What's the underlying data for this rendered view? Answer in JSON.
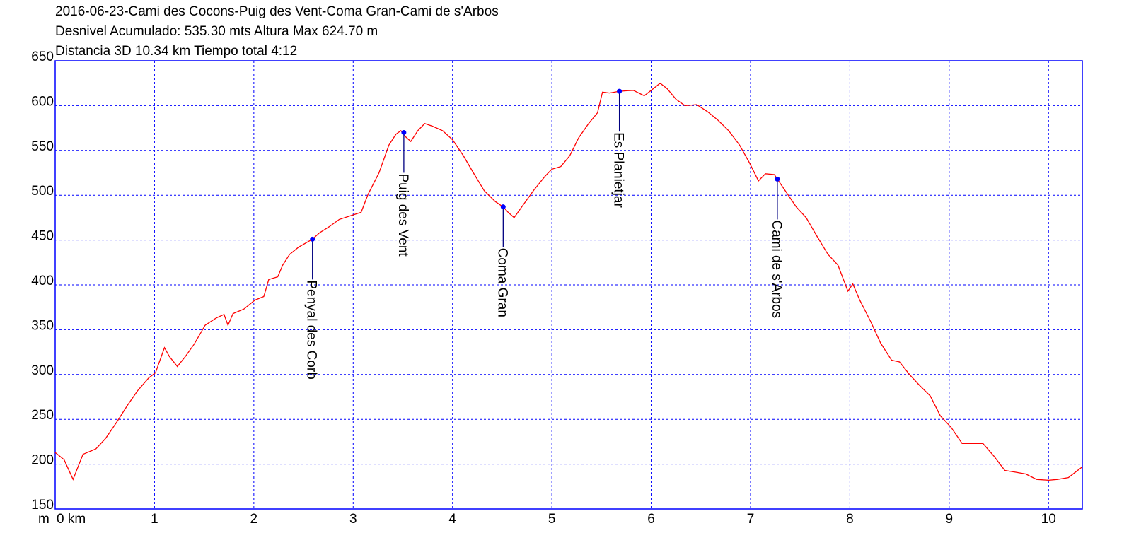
{
  "chart_data": {
    "type": "line",
    "title_lines": [
      "2016-06-23-Cami des Cocons-Puig des Vent-Coma Gran-Cami de s'Arbos",
      "Desnivel Acumulado: 535.30 mts  Altura Max 624.70 m",
      "Distancia 3D 10.34 km  Tiempo total 4:12"
    ],
    "y_label": "m",
    "x": [
      0,
      0.09,
      0.18,
      0.23,
      0.28,
      0.41,
      0.51,
      0.62,
      0.73,
      0.83,
      0.94,
      1.01,
      1.1,
      1.15,
      1.23,
      1.31,
      1.4,
      1.51,
      1.62,
      1.7,
      1.74,
      1.79,
      1.9,
      2.01,
      2.1,
      2.15,
      2.24,
      2.29,
      2.36,
      2.45,
      2.59,
      2.66,
      2.76,
      2.86,
      2.97,
      3.08,
      3.15,
      3.26,
      3.36,
      3.43,
      3.48,
      3.52,
      3.58,
      3.65,
      3.72,
      3.8,
      3.9,
      4.0,
      4.11,
      4.21,
      4.32,
      4.43,
      4.51,
      4.56,
      4.62,
      4.71,
      4.82,
      4.93,
      5.0,
      5.09,
      5.18,
      5.27,
      5.37,
      5.46,
      5.51,
      5.58,
      5.68,
      5.82,
      5.93,
      6.0,
      6.09,
      6.16,
      6.25,
      6.34,
      6.46,
      6.57,
      6.67,
      6.78,
      6.89,
      6.99,
      7.08,
      7.15,
      7.24,
      7.27,
      7.35,
      7.46,
      7.56,
      7.67,
      7.78,
      7.88,
      7.98,
      8.03,
      8.1,
      8.21,
      8.31,
      8.42,
      8.5,
      8.6,
      8.7,
      8.81,
      8.91,
      9.02,
      9.13,
      9.23,
      9.34,
      9.45,
      9.56,
      9.67,
      9.77,
      9.88,
      10.0,
      10.09,
      10.2,
      10.34
    ],
    "series": [
      {
        "color": "#ff0000",
        "values": [
          213,
          205,
          183,
          197,
          211,
          217,
          229,
          247,
          266,
          282,
          296,
          302,
          330,
          320,
          309,
          320,
          334,
          355,
          363,
          367,
          355,
          368,
          373,
          383,
          387,
          406,
          409,
          422,
          434,
          442,
          451,
          458,
          465,
          473,
          477,
          481,
          501,
          525,
          556,
          568,
          572,
          566,
          560,
          572,
          580,
          577,
          572,
          562,
          544,
          525,
          505,
          493,
          487,
          481,
          475,
          489,
          506,
          521,
          529,
          532,
          544,
          564,
          580,
          592,
          615,
          614,
          616,
          617,
          611,
          617,
          625,
          619,
          607,
          600,
          601,
          593,
          584,
          572,
          556,
          536,
          516,
          524,
          523,
          518,
          505,
          487,
          475,
          454,
          434,
          422,
          393,
          401,
          383,
          359,
          335,
          316,
          314,
          300,
          288,
          276,
          254,
          241,
          223,
          223,
          223,
          209,
          193,
          191,
          189,
          183,
          182,
          183,
          185,
          197
        ]
      }
    ],
    "annotations": [
      {
        "label": "Penyal des Corb",
        "x": 2.59,
        "y": 451
      },
      {
        "label": "Puig des Vent",
        "x": 3.51,
        "y": 570
      },
      {
        "label": "Coma Gran",
        "x": 4.51,
        "y": 487
      },
      {
        "label": "Es Planietjar",
        "x": 5.68,
        "y": 616
      },
      {
        "label": "Cami de s'Arbos",
        "x": 7.27,
        "y": 518
      }
    ],
    "annotation_color": "#0000ff",
    "xlim": [
      0,
      10.34
    ],
    "ylim": [
      150,
      650
    ],
    "xticks": [
      {
        "value": 0,
        "label": "0 km"
      },
      1,
      2,
      3,
      4,
      5,
      6,
      7,
      8,
      9,
      10
    ],
    "yticks": [
      150,
      200,
      250,
      300,
      350,
      400,
      450,
      500,
      550,
      600,
      650
    ],
    "grid": true,
    "axis_color": "#0000ff"
  }
}
